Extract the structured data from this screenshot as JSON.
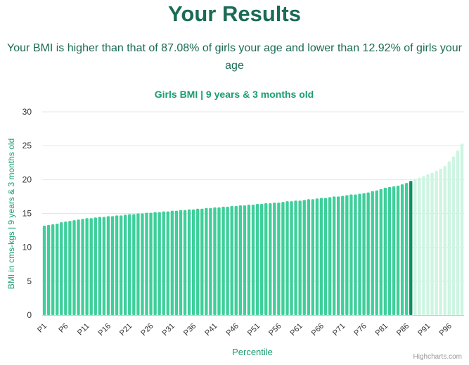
{
  "header": {
    "title": "Your Results",
    "summary_line1": "Your BMI is higher than that of 87.08% of girls your age and lower than 12.92% of girls your",
    "summary_line2": "age"
  },
  "credit": "Highcharts.com",
  "colors": {
    "below": "#3ecf9a",
    "current": "#0e8f62",
    "above": "#cdf5e2",
    "title": "#1a9e6e",
    "grid": "#e6e6e6",
    "axis_text": "#333333"
  },
  "chart_data": {
    "type": "bar",
    "title": "Girls BMI | 9 years & 3 months old",
    "xlabel": "Percentile",
    "ylabel": "BMI in cms-kgs | 9 years & 3 months old",
    "ylim": [
      0,
      30
    ],
    "yticks": [
      0,
      5,
      10,
      15,
      20,
      25,
      30
    ],
    "tick_labels_every": 5,
    "highlight_category": "P87",
    "grid": true,
    "categories": [
      "P1",
      "P2",
      "P3",
      "P4",
      "P5",
      "P6",
      "P7",
      "P8",
      "P9",
      "P10",
      "P11",
      "P12",
      "P13",
      "P14",
      "P15",
      "P16",
      "P17",
      "P18",
      "P19",
      "P20",
      "P21",
      "P22",
      "P23",
      "P24",
      "P25",
      "P26",
      "P27",
      "P28",
      "P29",
      "P30",
      "P31",
      "P32",
      "P33",
      "P34",
      "P35",
      "P36",
      "P37",
      "P38",
      "P39",
      "P40",
      "P41",
      "P42",
      "P43",
      "P44",
      "P45",
      "P46",
      "P47",
      "P48",
      "P49",
      "P50",
      "P51",
      "P52",
      "P53",
      "P54",
      "P55",
      "P56",
      "P57",
      "P58",
      "P59",
      "P60",
      "P61",
      "P62",
      "P63",
      "P64",
      "P65",
      "P66",
      "P67",
      "P68",
      "P69",
      "P70",
      "P71",
      "P72",
      "P73",
      "P74",
      "P75",
      "P76",
      "P77",
      "P78",
      "P79",
      "P80",
      "P81",
      "P82",
      "P83",
      "P84",
      "P85",
      "P86",
      "P87",
      "P88",
      "P89",
      "P90",
      "P91",
      "P92",
      "P93",
      "P94",
      "P95",
      "P96",
      "P97",
      "P98",
      "P99"
    ],
    "values": [
      13.2,
      13.3,
      13.4,
      13.5,
      13.7,
      13.8,
      13.9,
      14.0,
      14.1,
      14.2,
      14.3,
      14.3,
      14.4,
      14.5,
      14.5,
      14.6,
      14.6,
      14.7,
      14.7,
      14.8,
      14.9,
      14.9,
      15.0,
      15.0,
      15.1,
      15.1,
      15.2,
      15.2,
      15.3,
      15.3,
      15.4,
      15.4,
      15.5,
      15.5,
      15.6,
      15.6,
      15.7,
      15.7,
      15.8,
      15.8,
      15.9,
      15.9,
      16.0,
      16.0,
      16.1,
      16.1,
      16.2,
      16.2,
      16.3,
      16.3,
      16.4,
      16.4,
      16.5,
      16.5,
      16.6,
      16.6,
      16.7,
      16.8,
      16.8,
      16.9,
      16.9,
      17.0,
      17.1,
      17.1,
      17.2,
      17.3,
      17.3,
      17.4,
      17.5,
      17.5,
      17.6,
      17.7,
      17.8,
      17.8,
      17.9,
      18.0,
      18.1,
      18.3,
      18.4,
      18.6,
      18.8,
      18.9,
      19.0,
      19.1,
      19.3,
      19.5,
      19.8,
      20.1,
      20.3,
      20.5,
      20.8,
      21.0,
      21.3,
      21.6,
      22.0,
      22.7,
      23.4,
      24.3,
      25.3
    ]
  }
}
